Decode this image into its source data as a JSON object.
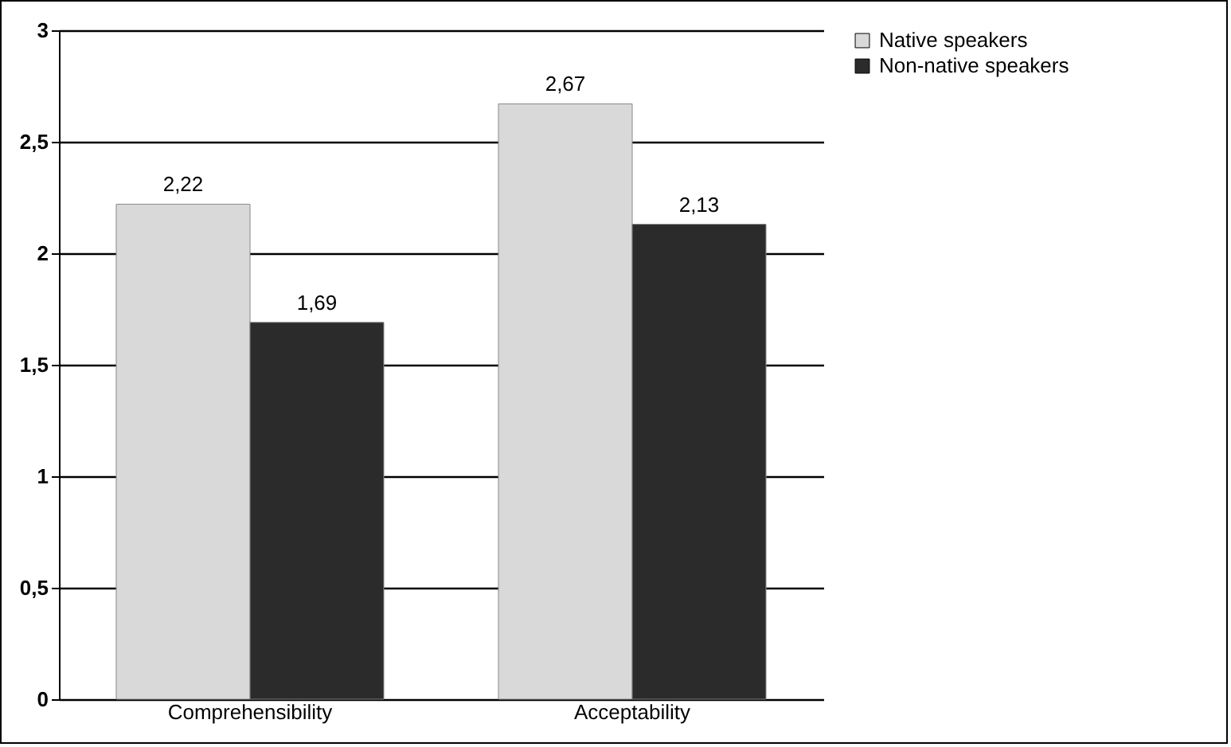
{
  "chart_data": {
    "type": "bar",
    "categories": [
      "Comprehensibility",
      "Acceptability"
    ],
    "series": [
      {
        "name": "Native speakers",
        "color": "#d9d9d9",
        "values": [
          2.22,
          2.67
        ],
        "value_labels": [
          "2,22",
          "2,67"
        ]
      },
      {
        "name": "Non-native speakers",
        "color": "#2b2b2b",
        "values": [
          1.69,
          2.13
        ],
        "value_labels": [
          "1,69",
          "2,13"
        ]
      }
    ],
    "ylim": [
      0,
      3
    ],
    "yticks": [
      0,
      {
        "value": 0.5,
        "label": "0,5"
      },
      1,
      {
        "value": 1.5,
        "label": "1,5"
      },
      2,
      {
        "value": 2.5,
        "label": "2,5"
      },
      3
    ],
    "grid": "y",
    "legend": "right"
  }
}
